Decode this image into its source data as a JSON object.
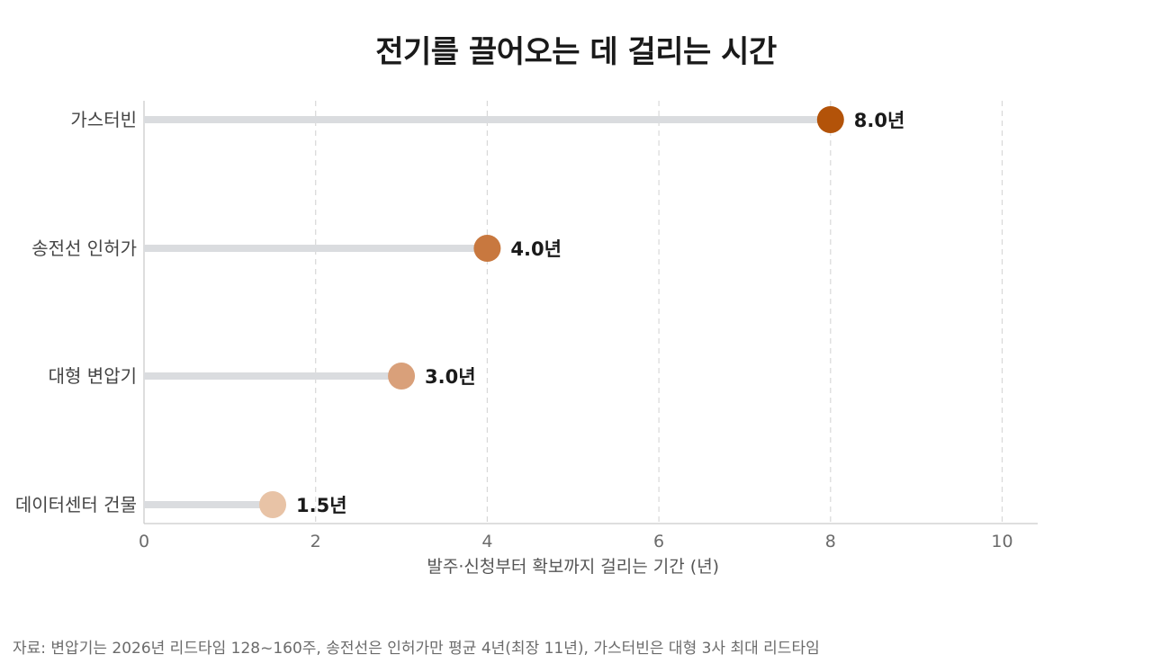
{
  "chart_data": {
    "type": "lollipop",
    "title": "전기를 끌어오는 데 걸리는 시간",
    "categories": [
      "가스터빈",
      "송전선 인허가",
      "대형 변압기",
      "데이터센터 건물"
    ],
    "values": [
      8.0,
      4.0,
      3.0,
      1.5
    ],
    "value_labels": [
      "8.0년",
      "4.0년",
      "3.0년",
      "1.5년"
    ],
    "colors": [
      "#b35309",
      "#c8783f",
      "#d9a07a",
      "#e8c3a6"
    ],
    "xlabel": "발주·신청부터 확보까지 걸리는 기간 (년)",
    "ylabel": "",
    "xlim": [
      0,
      10.4
    ],
    "xticks": [
      0,
      2,
      4,
      6,
      8,
      10
    ],
    "xtick_labels": [
      "0",
      "2",
      "4",
      "6",
      "8",
      "10"
    ],
    "grid": "vertical dashed",
    "orientation": "horizontal"
  },
  "footer": {
    "source": "자료: 변압기는 2026년 리드타임 128~160주, 송전선은 인허가만 평균 4년(최장 11년), 가스터빈은 대형 3사 최대 리드타임"
  }
}
